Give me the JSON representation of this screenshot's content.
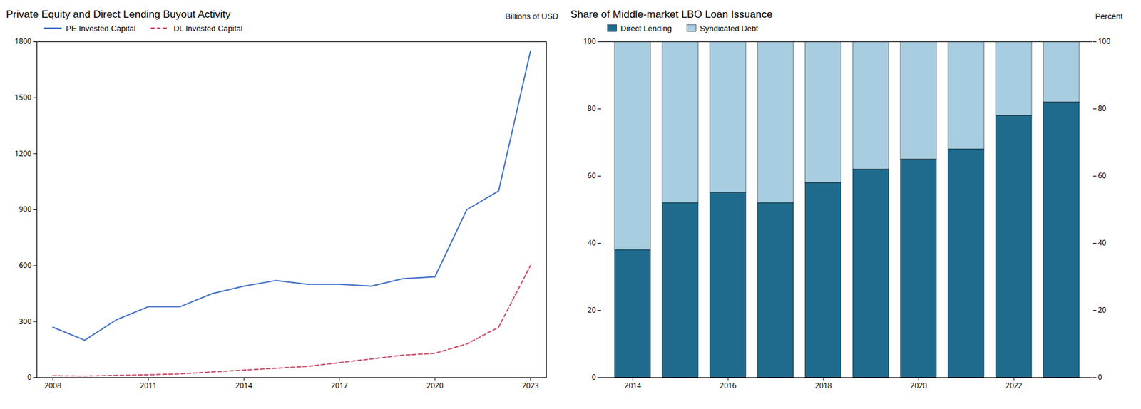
{
  "chart_data": [
    {
      "type": "line",
      "title": "Private Equity and Direct Lending Buyout Activity",
      "ylabel": "Billions of USD",
      "x": [
        2008,
        2009,
        2010,
        2011,
        2012,
        2013,
        2014,
        2015,
        2016,
        2017,
        2018,
        2019,
        2020,
        2021,
        2022,
        2023
      ],
      "series": [
        {
          "name": "PE Invested Capital",
          "color": "#4472C4",
          "line_style": "solid",
          "values": [
            270,
            200,
            310,
            380,
            380,
            450,
            490,
            520,
            500,
            500,
            490,
            530,
            540,
            900,
            1000,
            1750
          ]
        },
        {
          "name": "DL Invested Capital",
          "color": "#C9506A",
          "line_style": "dashed",
          "values": [
            10,
            8,
            12,
            15,
            20,
            30,
            40,
            50,
            60,
            80,
            100,
            120,
            130,
            180,
            270,
            600
          ]
        }
      ],
      "xlim": [
        2007.5,
        2023.5
      ],
      "xticks": [
        2008,
        2011,
        2014,
        2017,
        2020,
        2023
      ],
      "ylim": [
        0,
        1800
      ],
      "yticks": [
        0,
        300,
        600,
        900,
        1200,
        1500,
        1800
      ],
      "grid": false,
      "legend": "upper left"
    },
    {
      "type": "bar",
      "stacked": true,
      "title": "Share of Middle-market LBO Loan Issuance",
      "ylabel": "Percent",
      "categories": [
        2014,
        2015,
        2016,
        2017,
        2018,
        2019,
        2020,
        2021,
        2022,
        2023
      ],
      "series": [
        {
          "name": "Direct Lending",
          "color": "#1F6B8E",
          "values": [
            38,
            52,
            55,
            52,
            58,
            62,
            65,
            68,
            78,
            82
          ]
        },
        {
          "name": "Syndicated Debt",
          "color": "#A8CCE0",
          "values": [
            62,
            48,
            45,
            48,
            42,
            38,
            35,
            32,
            22,
            18
          ]
        }
      ],
      "xticks": [
        2014,
        2016,
        2018,
        2020,
        2022
      ],
      "ylim": [
        0,
        100
      ],
      "yticks": [
        0,
        20,
        40,
        60,
        80,
        100
      ],
      "grid": false,
      "legend": "upper left"
    }
  ]
}
